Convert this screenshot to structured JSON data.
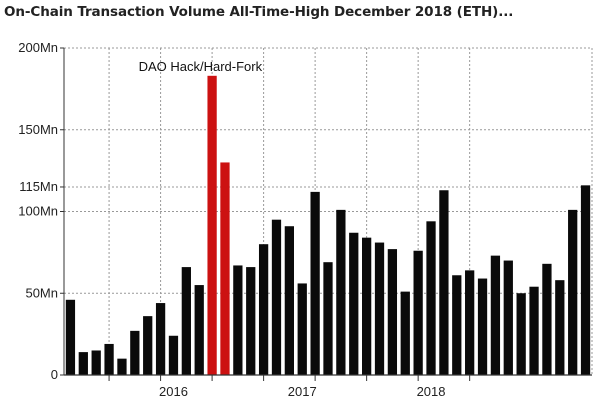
{
  "chart_data": {
    "type": "bar",
    "title": "On-Chain Transaction Volume All-Time-High December 2018 (ETH)...",
    "xlabel": "",
    "ylabel": "",
    "ylim": [
      0,
      200
    ],
    "y_unit": "Mn",
    "y_ticks": [
      {
        "value": 0,
        "label": "0"
      },
      {
        "value": 50,
        "label": "50Mn"
      },
      {
        "value": 100,
        "label": "100Mn"
      },
      {
        "value": 150,
        "label": "150Mn"
      },
      {
        "value": 200,
        "label": "200Mn"
      }
    ],
    "highlight_line": {
      "value": 115,
      "label": "115Mn",
      "color": "#b22222"
    },
    "x_tick_labels": [
      {
        "label": "2016",
        "index": 8
      },
      {
        "label": "2017",
        "index": 18
      },
      {
        "label": "2018",
        "index": 28
      }
    ],
    "x_gridlines_after_index": [
      3,
      7,
      11,
      15,
      19,
      23,
      27,
      31
    ],
    "annotation": {
      "text": "DAO Hack/Hard-Fork",
      "index": 9
    },
    "grid": true,
    "values": [
      46,
      14,
      15,
      19,
      10,
      27,
      36,
      44,
      24,
      66,
      55,
      183,
      130,
      67,
      66,
      80,
      95,
      91,
      56,
      112,
      69,
      101,
      87,
      84,
      81,
      77,
      51,
      76,
      94,
      113,
      61,
      64,
      59,
      73,
      70,
      50,
      54,
      68,
      58,
      101,
      116
    ],
    "bar_colors": {
      "default": "#0a0a0a",
      "highlight": "#cc1111"
    },
    "highlight_indices": [
      11,
      12
    ]
  }
}
